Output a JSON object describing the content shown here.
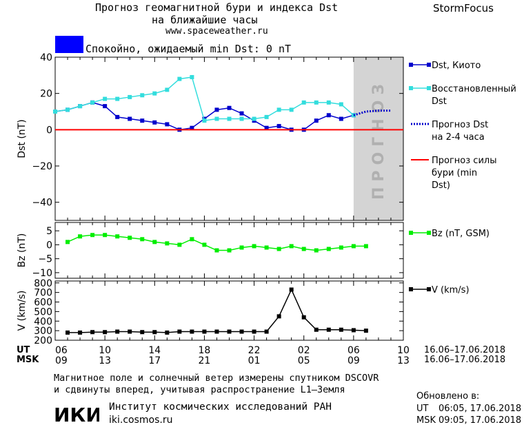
{
  "header": {
    "title_line1": "Прогноз геомагнитной бури и индекса Dst",
    "title_line2": "на ближайшие часы",
    "url": "www.spaceweather.ru",
    "brand": "StormFocus"
  },
  "status": {
    "color": "#0000ff",
    "text": "Спокойно, ожидаемый min Dst: 0 nT"
  },
  "forecast_label": "ПРОГНОЗ",
  "time_axis": {
    "ut_label": "UT",
    "msk_label": "MSK",
    "ut_ticks": [
      "06",
      "10",
      "14",
      "18",
      "22",
      "02",
      "06",
      "10"
    ],
    "msk_ticks": [
      "09",
      "13",
      "17",
      "21",
      "01",
      "05",
      "09",
      "13"
    ],
    "ut_range": "16.06–17.06.2018",
    "msk_range": "16.06–17.06.2018"
  },
  "footer": {
    "line1": "Магнитное поле и солнечный ветер измерены спутником DSCOVR",
    "line2": "и сдвинуты вперед, учитывая распространение L1–Земля",
    "institute": "Институт космических исследований РАН",
    "institute_url": "iki.cosmos.ru",
    "logo_text": "ИКИ",
    "updated_label": "Обновлено в:",
    "updated_ut_label": "UT",
    "updated_ut": "06:05, 17.06.2018",
    "updated_msk_label": "MSK",
    "updated_msk": "09:05, 17.06.2018"
  },
  "chart_data": [
    {
      "type": "line",
      "ylabel": "Dst (nT)",
      "ylim": [
        -50,
        40
      ],
      "yticks": [
        40,
        20,
        0,
        -20,
        -40
      ],
      "forecast_shade_start_hour": 24,
      "series": [
        {
          "name": "Dst, Киото",
          "color": "#0000cc",
          "x": [
            0,
            1,
            2,
            3,
            4,
            5,
            6,
            7,
            8,
            9,
            10,
            11,
            12,
            13,
            14,
            15,
            16,
            17,
            18,
            19,
            20,
            21,
            22,
            23,
            24
          ],
          "values": [
            10,
            11,
            13,
            15,
            13,
            7,
            6,
            5,
            4,
            3,
            0,
            1,
            6,
            11,
            12,
            9,
            5,
            1,
            2,
            0,
            0,
            5,
            8,
            6,
            8
          ]
        },
        {
          "name": "Восстановленный Dst",
          "color": "#33dddd",
          "x": [
            0,
            1,
            2,
            3,
            4,
            5,
            6,
            7,
            8,
            9,
            10,
            11,
            12,
            13,
            14,
            15,
            16,
            17,
            18,
            19,
            20,
            21,
            22,
            23,
            24
          ],
          "values": [
            10,
            11,
            13,
            15,
            17,
            17,
            18,
            19,
            20,
            22,
            28,
            29,
            5,
            6,
            6,
            6,
            6,
            7,
            11,
            11,
            15,
            15,
            15,
            14,
            8
          ]
        },
        {
          "name": "Прогноз Dst на 2-4 часа",
          "color": "#0000cc",
          "style": "dotted",
          "x": [
            24,
            25,
            26,
            27
          ],
          "values": [
            8,
            10,
            10.5,
            10.5
          ]
        },
        {
          "name": "Прогноз силы бури (min Dst)",
          "color": "#ff0000",
          "x": [
            0,
            28
          ],
          "values": [
            0,
            0
          ]
        }
      ]
    },
    {
      "type": "line",
      "ylabel": "Bz (nT)",
      "ylim": [
        -12,
        8
      ],
      "yticks": [
        5,
        0,
        -5,
        -10
      ],
      "series": [
        {
          "name": "Bz (nT, GSM)",
          "color": "#00ee00",
          "x": [
            1,
            2,
            3,
            4,
            5,
            6,
            7,
            8,
            9,
            10,
            11,
            12,
            13,
            14,
            15,
            16,
            17,
            18,
            19,
            20,
            21,
            22,
            23,
            24,
            25
          ],
          "values": [
            1,
            3,
            3.5,
            3.5,
            3,
            2.5,
            2,
            1,
            0.5,
            0,
            2,
            0,
            -2,
            -2,
            -1,
            -0.5,
            -1,
            -1.5,
            -0.5,
            -1.5,
            -2,
            -1.5,
            -1,
            -0.5,
            -0.5
          ]
        }
      ]
    },
    {
      "type": "line",
      "ylabel": "V (km/s)",
      "ylim": [
        200,
        820
      ],
      "yticks": [
        800,
        700,
        600,
        500,
        400,
        300,
        200
      ],
      "series": [
        {
          "name": "V (km/s)",
          "color": "#000000",
          "x": [
            1,
            2,
            3,
            4,
            5,
            6,
            7,
            8,
            9,
            10,
            11,
            12,
            13,
            14,
            15,
            16,
            17,
            18,
            19,
            20,
            21,
            22,
            23,
            24,
            25
          ],
          "values": [
            280,
            280,
            285,
            285,
            290,
            290,
            285,
            285,
            280,
            290,
            290,
            290,
            290,
            290,
            290,
            290,
            290,
            450,
            730,
            440,
            310,
            310,
            310,
            305,
            300
          ]
        }
      ]
    }
  ]
}
